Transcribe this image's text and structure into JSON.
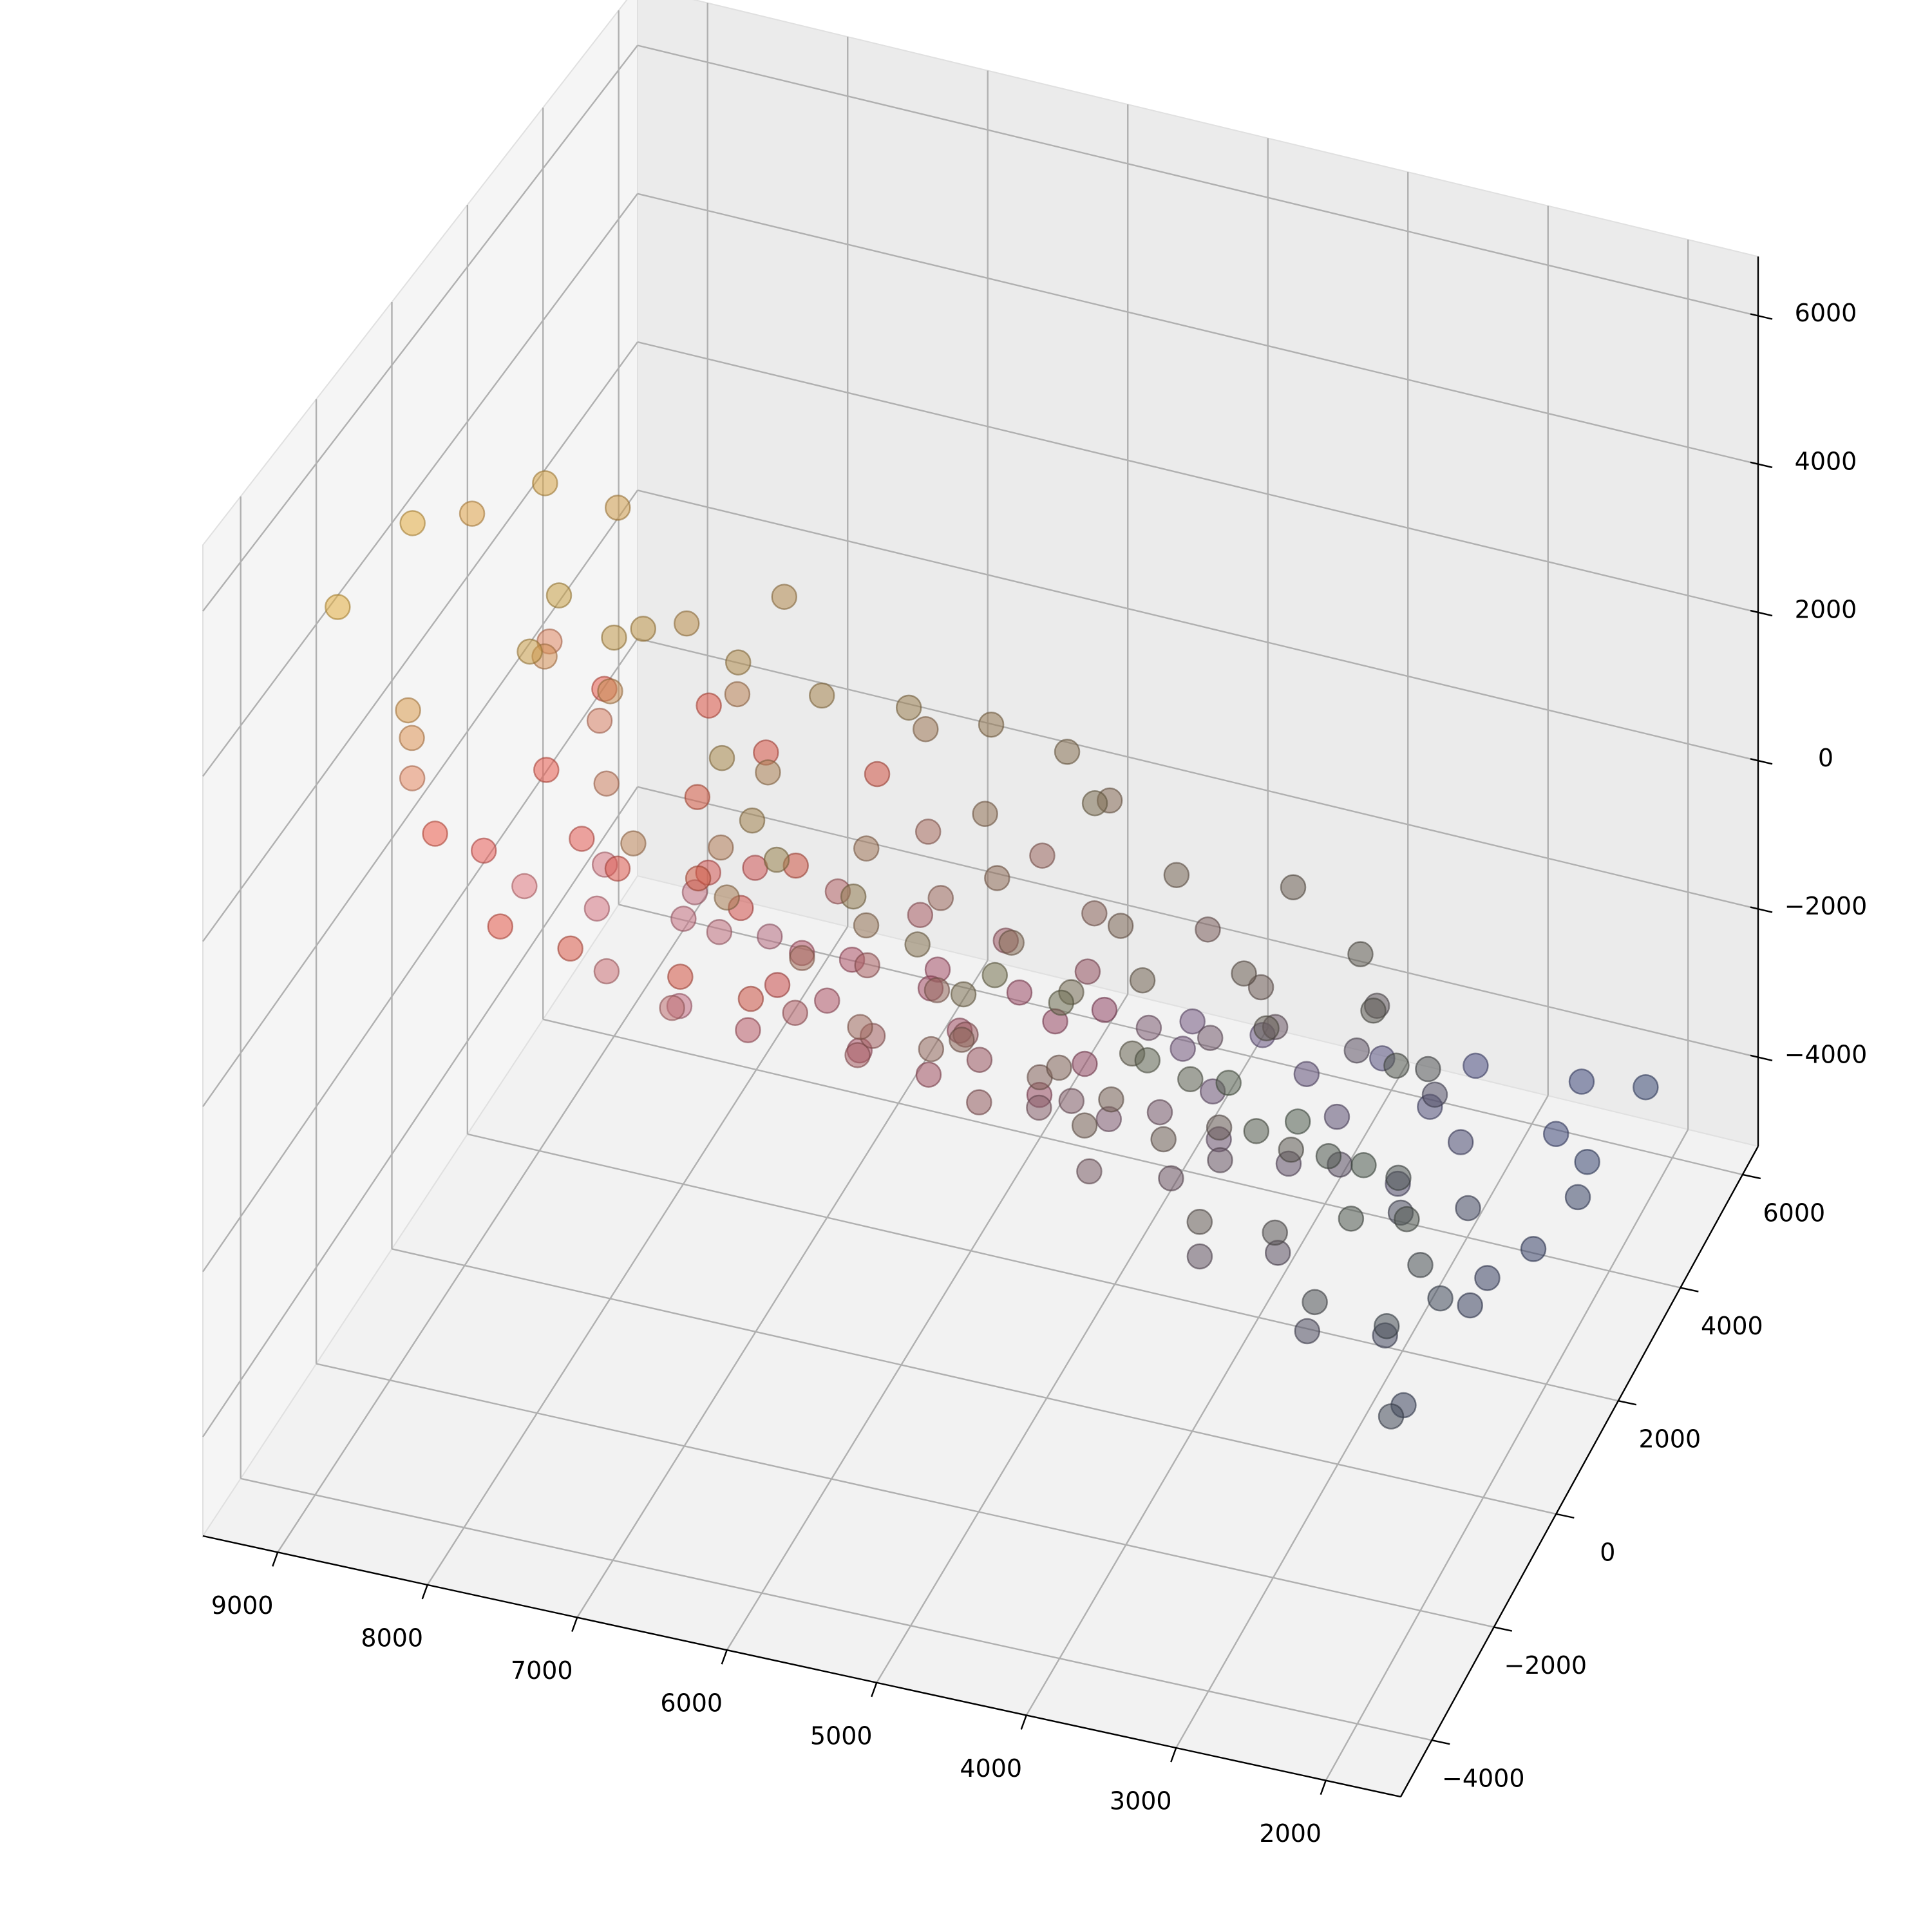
{
  "chart_data": {
    "type": "scatter",
    "projection": "3d",
    "title": "",
    "xlabel": "",
    "ylabel": "",
    "zlabel": "",
    "grid": true,
    "legend": "none",
    "marker_alpha": 0.55,
    "xlim": [
      1500,
      9500
    ],
    "ylim": [
      -5000,
      6500
    ],
    "zlim": [
      -5200,
      6800
    ],
    "x_ticks": [
      {
        "value": 9000,
        "label": "9000"
      },
      {
        "value": 8000,
        "label": "8000"
      },
      {
        "value": 7000,
        "label": "7000"
      },
      {
        "value": 6000,
        "label": "6000"
      },
      {
        "value": 5000,
        "label": "5000"
      },
      {
        "value": 4000,
        "label": "4000"
      },
      {
        "value": 3000,
        "label": "3000"
      },
      {
        "value": 2000,
        "label": "2000"
      }
    ],
    "y_ticks": [
      {
        "value": -4000,
        "label": "−4000"
      },
      {
        "value": -2000,
        "label": "−2000"
      },
      {
        "value": 0,
        "label": "0"
      },
      {
        "value": 2000,
        "label": "2000"
      },
      {
        "value": 4000,
        "label": "4000"
      },
      {
        "value": 6000,
        "label": "6000"
      }
    ],
    "z_ticks": [
      {
        "value": -4000,
        "label": "−4000"
      },
      {
        "value": -2000,
        "label": "−2000"
      },
      {
        "value": 0,
        "label": "0"
      },
      {
        "value": 2000,
        "label": "2000"
      },
      {
        "value": 4000,
        "label": "4000"
      },
      {
        "value": 6000,
        "label": "6000"
      }
    ],
    "cluster_colors": {
      "yellow": "#e8c030",
      "orange": "#f0a030",
      "tan": "#c8a878",
      "olive": "#a0b040",
      "green": "#40a070",
      "dark_green": "#4a7050",
      "red": "#f03020",
      "salmon": "#f08070",
      "pink": "#e070b0",
      "crimson": "#b01040",
      "purple": "#8060b0",
      "blue": "#4060b0",
      "navy": "#303870",
      "dark_red": "#501818",
      "gray": "#505850",
      "light_blue": "#b0c8e8"
    },
    "points": [
      {
        "x": 9100,
        "y": -3000,
        "z": 5000
      },
      {
        "x": 9100,
        "y": -1000,
        "z": 4800
      },
      {
        "x": 9000,
        "y": 200,
        "z": 4200
      },
      {
        "x": 8600,
        "y": 600,
        "z": 4500
      },
      {
        "x": 8200,
        "y": 1000,
        "z": 4100
      },
      {
        "x": 8000,
        "y": -2200,
        "z": 4400
      },
      {
        "x": 7600,
        "y": -1500,
        "z": 4300
      },
      {
        "x": 7400,
        "y": -300,
        "z": 3800
      },
      {
        "x": 7000,
        "y": 800,
        "z": 3600
      },
      {
        "x": 6600,
        "y": -2600,
        "z": 3900
      },
      {
        "x": 6300,
        "y": -3000,
        "z": 3500
      },
      {
        "x": 5900,
        "y": -4000,
        "z": 3800
      },
      {
        "x": 5500,
        "y": -3500,
        "z": 3200
      },
      {
        "x": 5000,
        "y": -3800,
        "z": 3000
      },
      {
        "x": 4600,
        "y": -4200,
        "z": 2800
      },
      {
        "x": 4100,
        "y": -3200,
        "z": 2400
      },
      {
        "x": 3600,
        "y": -3600,
        "z": 2100
      },
      {
        "x": 3100,
        "y": -4100,
        "z": 2300
      },
      {
        "x": 2700,
        "y": -3900,
        "z": 1700
      },
      {
        "x": 2300,
        "y": -3500,
        "z": 1300
      },
      {
        "x": 2000,
        "y": -4200,
        "z": 1100
      },
      {
        "x": 8800,
        "y": 1500,
        "z": 1800
      },
      {
        "x": 8300,
        "y": 900,
        "z": 1400
      },
      {
        "x": 7900,
        "y": -500,
        "z": 1700
      },
      {
        "x": 7500,
        "y": 400,
        "z": 1100
      },
      {
        "x": 7100,
        "y": -1200,
        "z": 1300
      },
      {
        "x": 6700,
        "y": -100,
        "z": 900
      },
      {
        "x": 6200,
        "y": -2000,
        "z": 1200
      },
      {
        "x": 5800,
        "y": 300,
        "z": 600
      },
      {
        "x": 5400,
        "y": -1500,
        "z": 800
      },
      {
        "x": 5000,
        "y": -2500,
        "z": 1000
      },
      {
        "x": 4500,
        "y": -1800,
        "z": 400
      },
      {
        "x": 4100,
        "y": -2800,
        "z": 500
      },
      {
        "x": 3700,
        "y": -2200,
        "z": 100
      },
      {
        "x": 3300,
        "y": -2900,
        "z": -300
      },
      {
        "x": 2900,
        "y": -2400,
        "z": -600
      },
      {
        "x": 2500,
        "y": -3000,
        "z": -900
      },
      {
        "x": 2100,
        "y": -2600,
        "z": -1300
      },
      {
        "x": 1900,
        "y": -3400,
        "z": -1800
      },
      {
        "x": 8900,
        "y": 1800,
        "z": -100
      },
      {
        "x": 8500,
        "y": 1200,
        "z": -400
      },
      {
        "x": 8100,
        "y": 600,
        "z": -200
      },
      {
        "x": 7700,
        "y": 1500,
        "z": -700
      },
      {
        "x": 7300,
        "y": 800,
        "z": -500
      },
      {
        "x": 6900,
        "y": 200,
        "z": -900
      },
      {
        "x": 6500,
        "y": 1100,
        "z": -1100
      },
      {
        "x": 6100,
        "y": -400,
        "z": -800
      },
      {
        "x": 5700,
        "y": 600,
        "z": -1300
      },
      {
        "x": 5300,
        "y": -700,
        "z": -1100
      },
      {
        "x": 4900,
        "y": 300,
        "z": -1600
      },
      {
        "x": 4500,
        "y": -900,
        "z": -1500
      },
      {
        "x": 4100,
        "y": -200,
        "z": -1900
      },
      {
        "x": 3700,
        "y": -1100,
        "z": -2100
      },
      {
        "x": 3300,
        "y": -500,
        "z": -2300
      },
      {
        "x": 2900,
        "y": -1400,
        "z": -2500
      },
      {
        "x": 2500,
        "y": -800,
        "z": -2800
      },
      {
        "x": 2200,
        "y": -1600,
        "z": -3000
      },
      {
        "x": 8700,
        "y": 2600,
        "z": -1800
      },
      {
        "x": 8200,
        "y": 3100,
        "z": -2300
      },
      {
        "x": 7800,
        "y": 2200,
        "z": -2000
      },
      {
        "x": 7400,
        "y": 2900,
        "z": -2600
      },
      {
        "x": 7000,
        "y": 2000,
        "z": -2400
      },
      {
        "x": 6600,
        "y": 3300,
        "z": -3000
      },
      {
        "x": 6200,
        "y": 2500,
        "z": -2800
      },
      {
        "x": 5800,
        "y": 3600,
        "z": -3300
      },
      {
        "x": 5400,
        "y": 2800,
        "z": -3100
      },
      {
        "x": 5000,
        "y": 4000,
        "z": -3600
      },
      {
        "x": 4600,
        "y": 3200,
        "z": -3400
      },
      {
        "x": 4200,
        "y": 4300,
        "z": -3800
      },
      {
        "x": 3800,
        "y": 3500,
        "z": -3600
      },
      {
        "x": 3400,
        "y": 4600,
        "z": -4100
      },
      {
        "x": 3000,
        "y": 3800,
        "z": -3800
      },
      {
        "x": 2600,
        "y": 5000,
        "z": -4400
      },
      {
        "x": 2200,
        "y": 4200,
        "z": -4000
      },
      {
        "x": 3400,
        "y": 6000,
        "z": -4600
      },
      {
        "x": 2600,
        "y": 5800,
        "z": -4300
      },
      {
        "x": 2100,
        "y": 5600,
        "z": -4000
      },
      {
        "x": 2000,
        "y": 3000,
        "z": -3500
      },
      {
        "x": 7200,
        "y": -2600,
        "z": 2600
      },
      {
        "x": 6800,
        "y": -1800,
        "z": 2200
      },
      {
        "x": 6400,
        "y": -3300,
        "z": 2700
      },
      {
        "x": 6000,
        "y": -1000,
        "z": 2000
      },
      {
        "x": 5600,
        "y": -2700,
        "z": 2300
      },
      {
        "x": 5200,
        "y": -600,
        "z": 1700
      },
      {
        "x": 4800,
        "y": -1900,
        "z": 1900
      },
      {
        "x": 4400,
        "y": -400,
        "z": 1300
      },
      {
        "x": 4000,
        "y": -1500,
        "z": 1500
      },
      {
        "x": 3600,
        "y": -200,
        "z": 900
      },
      {
        "x": 3200,
        "y": -1300,
        "z": 1100
      },
      {
        "x": 2800,
        "y": 200,
        "z": 500
      },
      {
        "x": 2400,
        "y": -900,
        "z": 700
      },
      {
        "x": 8400,
        "y": -200,
        "z": 2900
      },
      {
        "x": 7800,
        "y": -800,
        "z": 3100
      },
      {
        "x": 7200,
        "y": 300,
        "z": 2600
      },
      {
        "x": 6600,
        "y": -1300,
        "z": 2900
      },
      {
        "x": 6000,
        "y": 700,
        "z": 2400
      },
      {
        "x": 5400,
        "y": -100,
        "z": 2100
      },
      {
        "x": 4800,
        "y": 1000,
        "z": 1800
      },
      {
        "x": 4200,
        "y": 400,
        "z": 1500
      },
      {
        "x": 3600,
        "y": 1300,
        "z": 1000
      },
      {
        "x": 3000,
        "y": 700,
        "z": 800
      },
      {
        "x": 8600,
        "y": 2200,
        "z": 800
      },
      {
        "x": 8000,
        "y": 2700,
        "z": 500
      },
      {
        "x": 7400,
        "y": 1900,
        "z": 700
      },
      {
        "x": 6800,
        "y": 2600,
        "z": 200
      },
      {
        "x": 6200,
        "y": 1600,
        "z": 400
      },
      {
        "x": 5600,
        "y": 2400,
        "z": -200
      },
      {
        "x": 5000,
        "y": 1400,
        "z": 0
      },
      {
        "x": 4400,
        "y": 2200,
        "z": -500
      },
      {
        "x": 3800,
        "y": 1200,
        "z": -300
      },
      {
        "x": 3200,
        "y": 2100,
        "z": -900
      },
      {
        "x": 2600,
        "y": 1000,
        "z": -700
      },
      {
        "x": 8300,
        "y": -1800,
        "z": 600
      },
      {
        "x": 7700,
        "y": -2300,
        "z": 900
      },
      {
        "x": 7100,
        "y": -1700,
        "z": 400
      },
      {
        "x": 6500,
        "y": -2200,
        "z": 700
      },
      {
        "x": 5900,
        "y": -1600,
        "z": 200
      },
      {
        "x": 5300,
        "y": -2100,
        "z": 500
      },
      {
        "x": 4700,
        "y": -1500,
        "z": 0
      },
      {
        "x": 4100,
        "y": -2000,
        "z": 300
      },
      {
        "x": 3500,
        "y": -1400,
        "z": -200
      },
      {
        "x": 2900,
        "y": -1900,
        "z": 100
      },
      {
        "x": 2300,
        "y": -1300,
        "z": -400
      },
      {
        "x": 8100,
        "y": 300,
        "z": -1300
      },
      {
        "x": 7500,
        "y": -300,
        "z": -1100
      },
      {
        "x": 6900,
        "y": 700,
        "z": -1600
      },
      {
        "x": 6300,
        "y": 0,
        "z": -1400
      },
      {
        "x": 5700,
        "y": 1000,
        "z": -1900
      },
      {
        "x": 5100,
        "y": 200,
        "z": -1700
      },
      {
        "x": 4500,
        "y": 1200,
        "z": -2200
      },
      {
        "x": 3900,
        "y": 400,
        "z": -2000
      },
      {
        "x": 3300,
        "y": 1400,
        "z": -2500
      },
      {
        "x": 2700,
        "y": 600,
        "z": -2300
      },
      {
        "x": 7900,
        "y": 1500,
        "z": -2500
      },
      {
        "x": 7300,
        "y": 1000,
        "z": -2200
      },
      {
        "x": 6700,
        "y": 1700,
        "z": -2700
      },
      {
        "x": 6100,
        "y": 1200,
        "z": -2400
      },
      {
        "x": 5500,
        "y": 1900,
        "z": -2900
      },
      {
        "x": 4900,
        "y": 1400,
        "z": -2600
      },
      {
        "x": 4300,
        "y": 2100,
        "z": -3100
      },
      {
        "x": 3700,
        "y": 1600,
        "z": -2800
      },
      {
        "x": 3100,
        "y": 2300,
        "z": -3300
      },
      {
        "x": 2500,
        "y": 1800,
        "z": -3000
      },
      {
        "x": 5100,
        "y": 4700,
        "z": -3800
      },
      {
        "x": 4700,
        "y": 5100,
        "z": -4100
      },
      {
        "x": 3900,
        "y": 5300,
        "z": -4200
      },
      {
        "x": 5600,
        "y": 4200,
        "z": -3500
      },
      {
        "x": 6100,
        "y": 3800,
        "z": -3200
      },
      {
        "x": 6600,
        "y": 3500,
        "z": -2900
      },
      {
        "x": 7100,
        "y": 3100,
        "z": -2700
      },
      {
        "x": 7600,
        "y": 2800,
        "z": -2400
      },
      {
        "x": 8100,
        "y": 2400,
        "z": -2100
      },
      {
        "x": 8600,
        "y": 2000,
        "z": -1900
      },
      {
        "x": 9000,
        "y": 1600,
        "z": -1500
      },
      {
        "x": 9100,
        "y": 900,
        "z": -600
      },
      {
        "x": 9100,
        "y": -400,
        "z": 500
      },
      {
        "x": 9000,
        "y": -1400,
        "z": 1900
      },
      {
        "x": 8800,
        "y": -2200,
        "z": 3000
      },
      {
        "x": 8700,
        "y": -2700,
        "z": 3700
      },
      {
        "x": 4300,
        "y": -4600,
        "z": 3400
      },
      {
        "x": 3900,
        "y": -4400,
        "z": 3100
      },
      {
        "x": 3300,
        "y": -4500,
        "z": 2700
      },
      {
        "x": 2800,
        "y": -4300,
        "z": 2500
      },
      {
        "x": 2400,
        "y": -4000,
        "z": 2000
      },
      {
        "x": 2000,
        "y": -3800,
        "z": 1500
      },
      {
        "x": 1900,
        "y": -2900,
        "z": 300
      },
      {
        "x": 2000,
        "y": -2000,
        "z": -900
      },
      {
        "x": 2100,
        "y": -900,
        "z": -2100
      },
      {
        "x": 2200,
        "y": 500,
        "z": -3200
      },
      {
        "x": 2300,
        "y": 1500,
        "z": -3600
      },
      {
        "x": 2200,
        "y": 2500,
        "z": -3900
      },
      {
        "x": 5900,
        "y": -200,
        "z": 3300
      },
      {
        "x": 5500,
        "y": 500,
        "z": 2800
      },
      {
        "x": 6400,
        "y": -600,
        "z": 3500
      },
      {
        "x": 5000,
        "y": 600,
        "z": 2600
      },
      {
        "x": 4600,
        "y": -300,
        "z": 2700
      },
      {
        "x": 6900,
        "y": -900,
        "z": 3900
      },
      {
        "x": 7500,
        "y": -1100,
        "z": 4200
      },
      {
        "x": 8000,
        "y": -1400,
        "z": 4600
      },
      {
        "x": 4000,
        "y": 2500,
        "z": -1800
      },
      {
        "x": 3500,
        "y": 2800,
        "z": -2100
      },
      {
        "x": 3000,
        "y": 3000,
        "z": -2600
      },
      {
        "x": 4500,
        "y": 2700,
        "z": -2300
      },
      {
        "x": 5000,
        "y": 3000,
        "z": -2600
      },
      {
        "x": 5500,
        "y": 3300,
        "z": -2300
      },
      {
        "x": 6000,
        "y": 3000,
        "z": -1900
      },
      {
        "x": 6500,
        "y": 2600,
        "z": -1500
      },
      {
        "x": 7000,
        "y": 2300,
        "z": -1200
      },
      {
        "x": 7500,
        "y": 2000,
        "z": -900
      }
    ]
  }
}
